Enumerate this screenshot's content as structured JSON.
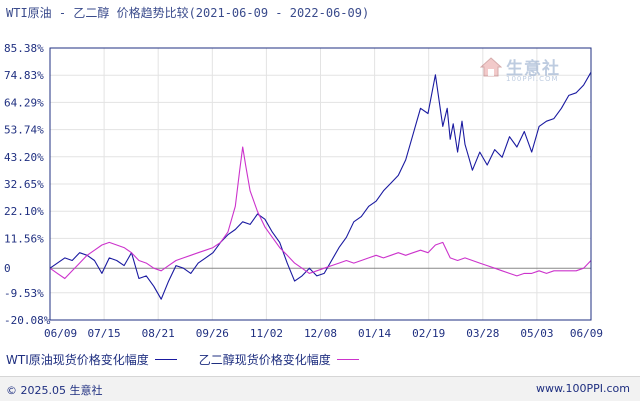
{
  "chart_data": {
    "type": "line",
    "title": "WTI原油 - 乙二醇 价格趋势比较(2021-06-09 - 2022-06-09)",
    "xlabel": "",
    "ylabel": "",
    "yticks": [
      "85.38%",
      "74.83%",
      "64.29%",
      "53.74%",
      "43.20%",
      "32.65%",
      "22.10%",
      "11.56%",
      "0",
      "-9.53%",
      "-20.08%"
    ],
    "ytick_values": [
      85.38,
      74.83,
      64.29,
      53.74,
      43.2,
      32.65,
      22.1,
      11.56,
      0,
      -9.53,
      -20.08
    ],
    "ylim": [
      -20.08,
      85.38
    ],
    "xticks": [
      "06/09",
      "07/15",
      "08/21",
      "09/26",
      "11/02",
      "12/08",
      "01/14",
      "02/19",
      "03/28",
      "05/03",
      "06/09"
    ],
    "xlim": [
      0,
      365
    ],
    "grid": true,
    "legend_position": "bottom",
    "series": [
      {
        "name": "WTI原油现货价格变化幅度",
        "color": "#1a1aa0",
        "x": [
          0,
          5,
          10,
          15,
          20,
          25,
          30,
          35,
          40,
          45,
          50,
          55,
          60,
          65,
          70,
          75,
          80,
          85,
          90,
          95,
          100,
          105,
          110,
          115,
          120,
          125,
          130,
          135,
          140,
          145,
          150,
          155,
          160,
          165,
          170,
          175,
          180,
          185,
          190,
          195,
          200,
          205,
          210,
          215,
          220,
          225,
          230,
          235,
          240,
          245,
          250,
          255,
          260,
          265,
          268,
          270,
          272,
          275,
          278,
          280,
          283,
          285,
          290,
          295,
          300,
          305,
          310,
          315,
          320,
          325,
          330,
          335,
          340,
          345,
          350,
          355,
          360,
          365
        ],
        "values": [
          0,
          2,
          4,
          3,
          6,
          5,
          3,
          -2,
          4,
          3,
          1,
          6,
          -4,
          -3,
          -7,
          -12,
          -5,
          1,
          0,
          -2,
          2,
          4,
          6,
          10,
          13,
          15,
          18,
          17,
          21,
          19,
          14,
          10,
          2,
          -5,
          -3,
          0,
          -3,
          -2,
          3,
          8,
          12,
          18,
          20,
          24,
          26,
          30,
          33,
          36,
          42,
          52,
          62,
          60,
          75,
          55,
          62,
          50,
          56,
          45,
          57,
          48,
          42,
          38,
          45,
          40,
          46,
          43,
          51,
          47,
          53,
          45,
          55,
          57,
          58,
          62,
          67,
          68,
          71,
          76
        ]
      },
      {
        "name": "乙二醇现货价格变化幅度",
        "color": "#cc33cc",
        "x": [
          0,
          5,
          10,
          15,
          20,
          25,
          30,
          35,
          40,
          45,
          50,
          55,
          60,
          65,
          70,
          75,
          80,
          85,
          90,
          95,
          100,
          105,
          110,
          115,
          120,
          125,
          128,
          130,
          132,
          135,
          140,
          145,
          150,
          155,
          160,
          165,
          170,
          175,
          180,
          185,
          190,
          195,
          200,
          205,
          210,
          215,
          220,
          225,
          230,
          235,
          240,
          245,
          250,
          255,
          260,
          265,
          270,
          275,
          280,
          285,
          290,
          295,
          300,
          305,
          310,
          315,
          320,
          325,
          330,
          335,
          340,
          345,
          350,
          355,
          360,
          365
        ],
        "values": [
          0,
          -2,
          -4,
          -1,
          2,
          5,
          7,
          9,
          10,
          9,
          8,
          6,
          3,
          2,
          0,
          -1,
          1,
          3,
          4,
          5,
          6,
          7,
          8,
          10,
          14,
          24,
          38,
          47,
          40,
          30,
          22,
          16,
          12,
          8,
          5,
          2,
          0,
          -2,
          -1,
          0,
          1,
          2,
          3,
          2,
          3,
          4,
          5,
          4,
          5,
          6,
          5,
          6,
          7,
          6,
          9,
          10,
          4,
          3,
          4,
          3,
          2,
          1,
          0,
          -1,
          -2,
          -3,
          -2,
          -2,
          -1,
          -2,
          -1,
          -1,
          -1,
          -1,
          0,
          3
        ]
      }
    ]
  },
  "watermark": {
    "name": "生意社",
    "url": "100PPI.COM"
  },
  "footer": {
    "copyright": "© 2025.05 生意社",
    "website": "www.100PPI.com"
  },
  "colors": {
    "axis": "#1f2f80",
    "grid": "#e3e3e3",
    "zero_line": "#888888"
  }
}
